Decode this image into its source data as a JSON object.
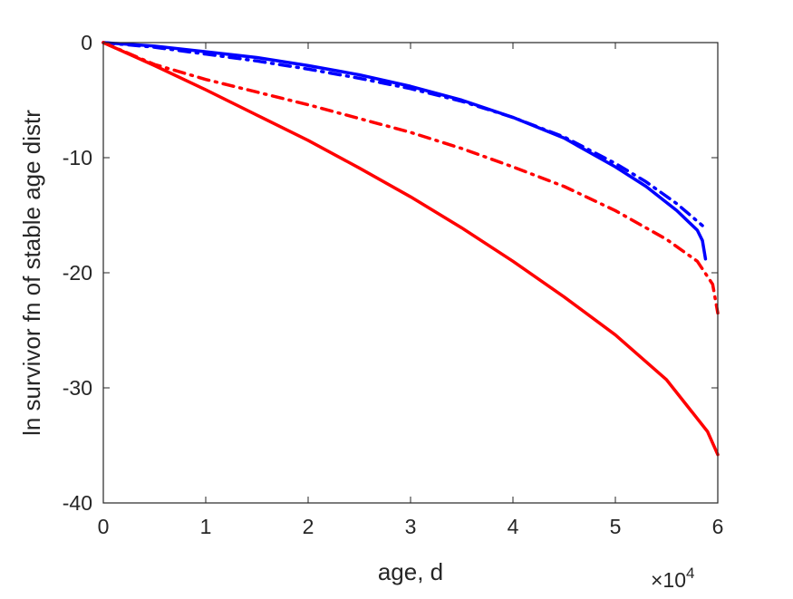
{
  "chart_data": {
    "type": "line",
    "xlabel": "age, d",
    "ylabel": "ln survivor fn of stable age distr",
    "x_exponent_base": "×10",
    "x_exponent_power": "4",
    "x_multiplier": 10000,
    "xlim": [
      0,
      6
    ],
    "ylim": [
      -40,
      0
    ],
    "xticks": [
      0,
      1,
      2,
      3,
      4,
      5,
      6
    ],
    "yticks": [
      0,
      -10,
      -20,
      -30,
      -40
    ],
    "grid": false,
    "colors": {
      "blue": "#0000ff",
      "red": "#ff0000",
      "axis": "#262626"
    },
    "series": [
      {
        "color": "#0000ff",
        "style": "solid",
        "x": [
          0,
          0.5,
          1,
          1.5,
          2,
          2.5,
          3,
          3.5,
          4,
          4.5,
          5,
          5.3,
          5.6,
          5.8,
          5.85,
          5.88
        ],
        "y": [
          0,
          -0.3,
          -0.8,
          -1.3,
          -2.0,
          -2.8,
          -3.8,
          -5.0,
          -6.5,
          -8.3,
          -10.8,
          -12.5,
          -14.6,
          -16.3,
          -17.2,
          -18.8
        ]
      },
      {
        "color": "#0000ff",
        "style": "dashdot",
        "x": [
          0,
          0.5,
          1,
          1.5,
          2,
          2.5,
          3,
          3.5,
          4,
          4.5,
          5,
          5.3,
          5.6,
          5.85
        ],
        "y": [
          0,
          -0.4,
          -1.0,
          -1.6,
          -2.3,
          -3.1,
          -4.0,
          -5.1,
          -6.5,
          -8.2,
          -10.5,
          -12.1,
          -14.0,
          -15.9
        ]
      },
      {
        "color": "#ff0000",
        "style": "dashdot",
        "x": [
          0,
          0.5,
          1,
          1.5,
          2,
          2.5,
          3,
          3.5,
          4,
          4.5,
          5,
          5.5,
          5.8,
          5.95,
          6.0
        ],
        "y": [
          0,
          -1.9,
          -3.2,
          -4.3,
          -5.4,
          -6.6,
          -7.8,
          -9.2,
          -10.8,
          -12.5,
          -14.6,
          -17.1,
          -19.0,
          -21.0,
          -23.5
        ]
      },
      {
        "color": "#ff0000",
        "style": "solid",
        "x": [
          0,
          0.5,
          1,
          1.5,
          2,
          2.5,
          3,
          3.5,
          4,
          4.5,
          5,
          5.5,
          5.9,
          6.0
        ],
        "y": [
          0,
          -2.0,
          -4.1,
          -6.3,
          -8.5,
          -10.9,
          -13.4,
          -16.1,
          -19.0,
          -22.1,
          -25.4,
          -29.3,
          -33.8,
          -35.8
        ]
      }
    ]
  }
}
